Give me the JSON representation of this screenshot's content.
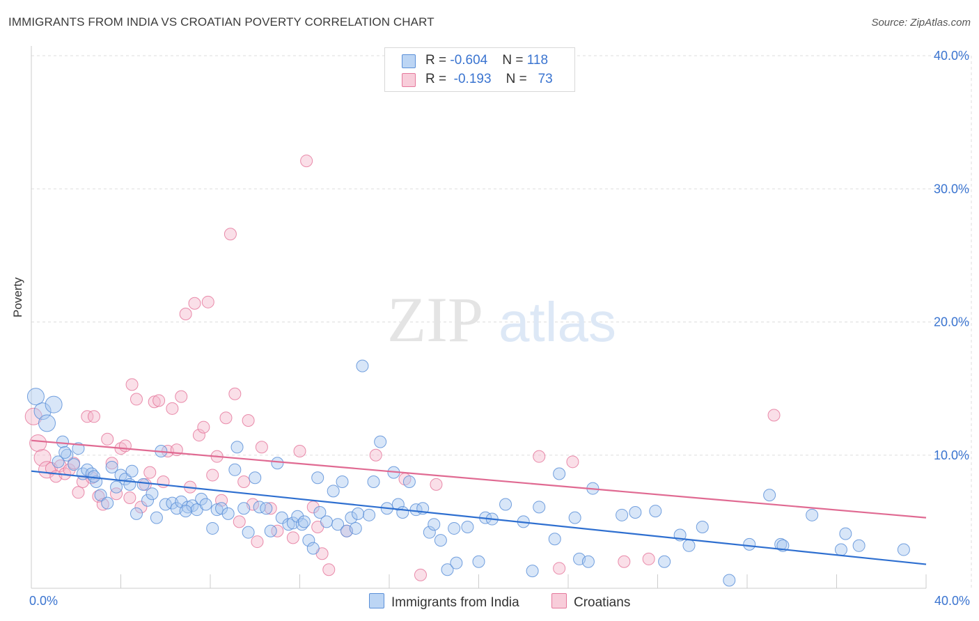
{
  "header": {
    "title": "IMMIGRANTS FROM INDIA VS CROATIAN POVERTY CORRELATION CHART",
    "source": "Source: ZipAtlas.com"
  },
  "legend": {
    "rows": [
      {
        "r_label": "R = ",
        "r_value": "-0.604",
        "n_label": "N = ",
        "n_value": "118"
      },
      {
        "r_label": "R = ",
        "r_value": "-0.193",
        "n_label": "N = ",
        "n_value": "73"
      }
    ],
    "bottom": [
      "Immigrants from India",
      "Croatians"
    ]
  },
  "watermark": {
    "zip": "ZIP",
    "atlas": "atlas"
  },
  "colors": {
    "blue_fill": "#a9c8f0",
    "blue_stroke": "#5a8fd8",
    "blue_line": "#2e6fd0",
    "pink_fill": "#f5b8cb",
    "pink_stroke": "#e5789c",
    "pink_line": "#e06a92",
    "tick_text": "#3a74d0",
    "grid": "#dddddd"
  },
  "chart_data": {
    "type": "scatter",
    "title": "IMMIGRANTS FROM INDIA VS CROATIAN POVERTY CORRELATION CHART",
    "xlabel": "",
    "ylabel": "Poverty",
    "xlim": [
      0,
      40
    ],
    "ylim": [
      0,
      40
    ],
    "x_ticks": [
      "0.0%",
      "40.0%"
    ],
    "y_ticks": [
      "10.0%",
      "20.0%",
      "30.0%",
      "40.0%"
    ],
    "y_tick_values": [
      10,
      20,
      30,
      40
    ],
    "series": [
      {
        "name": "Immigrants from India",
        "r": -0.604,
        "n": 118,
        "trend": [
          [
            0,
            8.8
          ],
          [
            40,
            1.8
          ]
        ],
        "points": [
          [
            0.2,
            14.4
          ],
          [
            0.5,
            13.3
          ],
          [
            0.7,
            12.4
          ],
          [
            1.0,
            13.8
          ],
          [
            1.2,
            9.5
          ],
          [
            1.4,
            11.0
          ],
          [
            1.6,
            10.0
          ],
          [
            1.9,
            9.3
          ],
          [
            2.1,
            10.5
          ],
          [
            2.3,
            8.6
          ],
          [
            2.5,
            8.9
          ],
          [
            2.7,
            8.6
          ],
          [
            2.9,
            8.0
          ],
          [
            3.1,
            7.0
          ],
          [
            3.4,
            6.4
          ],
          [
            3.6,
            9.1
          ],
          [
            3.8,
            7.6
          ],
          [
            4.0,
            8.5
          ],
          [
            4.2,
            8.2
          ],
          [
            4.5,
            8.8
          ],
          [
            4.7,
            5.6
          ],
          [
            5.0,
            7.8
          ],
          [
            5.2,
            6.6
          ],
          [
            5.4,
            7.1
          ],
          [
            5.6,
            5.3
          ],
          [
            5.8,
            10.3
          ],
          [
            6.0,
            6.3
          ],
          [
            6.3,
            6.4
          ],
          [
            6.5,
            6.0
          ],
          [
            6.7,
            6.5
          ],
          [
            7.0,
            6.1
          ],
          [
            7.2,
            6.2
          ],
          [
            7.4,
            5.9
          ],
          [
            7.6,
            6.7
          ],
          [
            7.8,
            6.3
          ],
          [
            8.1,
            4.5
          ],
          [
            8.3,
            5.9
          ],
          [
            8.5,
            6.0
          ],
          [
            8.8,
            5.6
          ],
          [
            9.1,
            8.9
          ],
          [
            9.2,
            10.6
          ],
          [
            9.5,
            6.0
          ],
          [
            9.7,
            4.2
          ],
          [
            10.0,
            8.3
          ],
          [
            10.2,
            6.1
          ],
          [
            10.5,
            6.0
          ],
          [
            10.7,
            4.3
          ],
          [
            11.0,
            9.4
          ],
          [
            11.2,
            5.3
          ],
          [
            11.5,
            4.8
          ],
          [
            11.7,
            4.9
          ],
          [
            11.9,
            5.4
          ],
          [
            12.1,
            4.8
          ],
          [
            12.4,
            3.6
          ],
          [
            12.6,
            3.0
          ],
          [
            12.8,
            8.3
          ],
          [
            12.9,
            5.7
          ],
          [
            13.2,
            5.0
          ],
          [
            13.5,
            7.3
          ],
          [
            13.7,
            4.8
          ],
          [
            13.9,
            8.0
          ],
          [
            14.1,
            4.3
          ],
          [
            14.3,
            5.3
          ],
          [
            14.5,
            4.5
          ],
          [
            14.8,
            16.7
          ],
          [
            15.1,
            5.5
          ],
          [
            15.3,
            8.0
          ],
          [
            15.6,
            11.0
          ],
          [
            15.9,
            6.0
          ],
          [
            16.2,
            8.7
          ],
          [
            16.4,
            6.3
          ],
          [
            16.6,
            5.7
          ],
          [
            16.9,
            8.0
          ],
          [
            17.2,
            5.9
          ],
          [
            17.5,
            6.0
          ],
          [
            17.8,
            4.2
          ],
          [
            18.0,
            4.8
          ],
          [
            18.3,
            3.6
          ],
          [
            18.6,
            1.4
          ],
          [
            18.9,
            4.5
          ],
          [
            19.0,
            1.9
          ],
          [
            19.5,
            4.6
          ],
          [
            20.0,
            2.0
          ],
          [
            20.3,
            5.3
          ],
          [
            20.6,
            5.2
          ],
          [
            21.2,
            6.3
          ],
          [
            22.0,
            5.0
          ],
          [
            22.4,
            1.3
          ],
          [
            22.7,
            6.1
          ],
          [
            23.4,
            3.7
          ],
          [
            23.6,
            8.6
          ],
          [
            24.3,
            5.3
          ],
          [
            24.5,
            2.2
          ],
          [
            24.9,
            2.0
          ],
          [
            25.1,
            7.5
          ],
          [
            26.4,
            5.5
          ],
          [
            27.0,
            5.7
          ],
          [
            27.9,
            5.8
          ],
          [
            28.3,
            2.0
          ],
          [
            29.0,
            4.0
          ],
          [
            29.4,
            3.2
          ],
          [
            30.0,
            4.6
          ],
          [
            31.2,
            0.6
          ],
          [
            32.1,
            3.3
          ],
          [
            33.0,
            7.0
          ],
          [
            33.5,
            3.3
          ],
          [
            33.6,
            3.2
          ],
          [
            34.9,
            5.5
          ],
          [
            36.2,
            2.9
          ],
          [
            36.4,
            4.1
          ],
          [
            37.0,
            3.2
          ],
          [
            39.0,
            2.9
          ],
          [
            1.5,
            10.2
          ],
          [
            2.8,
            8.4
          ],
          [
            4.4,
            7.8
          ],
          [
            6.9,
            5.8
          ],
          [
            12.2,
            5.0
          ],
          [
            14.6,
            5.6
          ]
        ]
      },
      {
        "name": "Croatians",
        "r": -0.193,
        "n": 73,
        "trend": [
          [
            0,
            11.1
          ],
          [
            40,
            5.3
          ]
        ],
        "points": [
          [
            0.1,
            12.9
          ],
          [
            0.3,
            10.9
          ],
          [
            0.5,
            9.8
          ],
          [
            0.7,
            8.9
          ],
          [
            0.9,
            9.0
          ],
          [
            1.1,
            8.4
          ],
          [
            1.3,
            9.2
          ],
          [
            1.5,
            8.6
          ],
          [
            1.7,
            8.9
          ],
          [
            1.9,
            9.4
          ],
          [
            2.1,
            7.2
          ],
          [
            2.3,
            8.0
          ],
          [
            2.5,
            12.9
          ],
          [
            2.7,
            8.3
          ],
          [
            2.8,
            12.9
          ],
          [
            3.0,
            6.9
          ],
          [
            3.2,
            6.3
          ],
          [
            3.4,
            11.2
          ],
          [
            3.6,
            9.4
          ],
          [
            3.8,
            7.1
          ],
          [
            4.0,
            10.5
          ],
          [
            4.2,
            10.7
          ],
          [
            4.4,
            6.8
          ],
          [
            4.5,
            15.3
          ],
          [
            4.7,
            14.2
          ],
          [
            4.9,
            6.1
          ],
          [
            5.1,
            7.8
          ],
          [
            5.3,
            8.7
          ],
          [
            5.5,
            14.0
          ],
          [
            5.7,
            14.1
          ],
          [
            5.9,
            8.0
          ],
          [
            6.1,
            10.3
          ],
          [
            6.3,
            13.5
          ],
          [
            6.5,
            10.4
          ],
          [
            6.7,
            14.4
          ],
          [
            6.9,
            20.6
          ],
          [
            7.1,
            7.6
          ],
          [
            7.3,
            21.4
          ],
          [
            7.5,
            11.5
          ],
          [
            7.7,
            12.1
          ],
          [
            7.9,
            21.5
          ],
          [
            8.1,
            8.5
          ],
          [
            8.3,
            9.9
          ],
          [
            8.5,
            6.6
          ],
          [
            8.7,
            12.8
          ],
          [
            8.9,
            26.6
          ],
          [
            9.1,
            14.6
          ],
          [
            9.3,
            5.0
          ],
          [
            9.5,
            8.0
          ],
          [
            9.7,
            12.6
          ],
          [
            9.9,
            6.3
          ],
          [
            10.1,
            3.5
          ],
          [
            10.3,
            10.6
          ],
          [
            10.7,
            6.0
          ],
          [
            11.0,
            4.3
          ],
          [
            11.7,
            3.8
          ],
          [
            12.0,
            10.3
          ],
          [
            12.3,
            32.1
          ],
          [
            12.6,
            6.1
          ],
          [
            12.8,
            4.6
          ],
          [
            13.0,
            2.6
          ],
          [
            13.3,
            1.4
          ],
          [
            14.1,
            4.3
          ],
          [
            15.4,
            10.0
          ],
          [
            16.7,
            8.2
          ],
          [
            17.4,
            1.0
          ],
          [
            18.1,
            7.8
          ],
          [
            22.7,
            9.9
          ],
          [
            23.6,
            1.5
          ],
          [
            24.2,
            9.5
          ],
          [
            26.5,
            2.0
          ],
          [
            27.6,
            2.2
          ],
          [
            33.2,
            13.0
          ]
        ]
      }
    ]
  }
}
